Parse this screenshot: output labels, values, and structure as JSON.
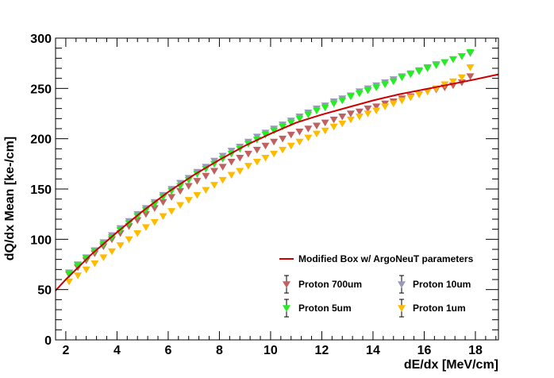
{
  "chart_data": {
    "type": "scatter",
    "title": "",
    "xlabel": "dE/dx [MeV/cm]",
    "ylabel": "dQ/dx Mean [ke-/cm]",
    "xlim": [
      1.6,
      18.9
    ],
    "ylim": [
      0,
      300
    ],
    "x_ticks": [
      2,
      4,
      6,
      8,
      10,
      12,
      14,
      16,
      18
    ],
    "y_ticks": [
      0,
      50,
      100,
      150,
      200,
      250,
      300
    ],
    "grid": false,
    "legend_position": "bottom-right",
    "curve": {
      "name": "Modified Box w/ ArgoNeuT parameters",
      "color": "#cc0000",
      "x": [
        1.6,
        2.0,
        3.0,
        4.0,
        5.0,
        6.0,
        7.0,
        8.0,
        9.0,
        10.0,
        11.0,
        12.0,
        13.0,
        14.0,
        15.0,
        16.0,
        17.0,
        18.0,
        18.9
      ],
      "y": [
        49,
        60,
        85,
        107,
        128,
        147,
        164,
        179,
        193,
        205,
        216,
        224,
        231,
        238,
        244,
        249,
        254,
        259,
        264
      ]
    },
    "series": [
      {
        "name": "Proton 700um",
        "color": "#c06060",
        "x": [
          2.13,
          2.47,
          2.8,
          3.13,
          3.47,
          3.8,
          4.13,
          4.47,
          4.8,
          5.13,
          5.47,
          5.8,
          6.13,
          6.47,
          6.8,
          7.13,
          7.47,
          7.8,
          8.13,
          8.47,
          8.8,
          9.13,
          9.47,
          9.8,
          10.13,
          10.47,
          10.8,
          11.13,
          11.47,
          11.8,
          12.13,
          12.47,
          12.8,
          13.13,
          13.47,
          13.8,
          14.13,
          14.47,
          14.8,
          15.13,
          15.47,
          15.8,
          16.13,
          16.47,
          16.8,
          17.13,
          17.47,
          17.8
        ],
        "y": [
          65,
          72,
          79,
          86,
          93,
          100,
          106,
          113,
          119,
          125,
          131,
          137,
          142,
          148,
          153,
          158,
          163,
          168,
          172,
          177,
          181,
          185,
          189,
          193,
          197,
          200,
          204,
          207,
          210,
          213,
          216,
          219,
          222,
          225,
          227,
          230,
          232,
          235,
          237,
          240,
          242,
          244,
          247,
          249,
          251,
          253,
          256,
          262
        ]
      },
      {
        "name": "Proton 10um",
        "color": "#9999bb",
        "x": [
          2.13,
          2.47,
          2.8,
          3.13,
          3.47,
          3.8,
          4.13,
          4.47,
          4.8,
          5.13,
          5.47,
          5.8,
          6.13,
          6.47,
          6.8,
          7.13,
          7.47,
          7.8,
          8.13,
          8.47,
          8.8,
          9.13,
          9.47,
          9.8,
          10.13,
          10.47,
          10.8,
          11.13,
          11.47,
          11.8,
          12.13,
          12.47,
          12.8,
          13.13,
          13.47,
          13.8,
          14.13,
          14.47,
          14.8,
          15.13,
          15.47,
          15.8,
          16.13,
          16.47,
          16.8,
          17.13,
          17.47,
          17.8
        ],
        "y": [
          67,
          75,
          82,
          89,
          97,
          104,
          111,
          118,
          125,
          131,
          137,
          144,
          150,
          156,
          161,
          167,
          172,
          178,
          183,
          188,
          192,
          197,
          202,
          206,
          210,
          214,
          218,
          222,
          226,
          230,
          233,
          237,
          240,
          243,
          247,
          250,
          253,
          256,
          259,
          262,
          265,
          268,
          271,
          274,
          276,
          279,
          282,
          285
        ]
      },
      {
        "name": "Proton 5um",
        "color": "#22ee22",
        "x": [
          2.13,
          2.47,
          2.8,
          3.13,
          3.47,
          3.8,
          4.13,
          4.47,
          4.8,
          5.13,
          5.47,
          5.8,
          6.13,
          6.47,
          6.8,
          7.13,
          7.47,
          7.8,
          8.13,
          8.47,
          8.8,
          9.13,
          9.47,
          9.8,
          10.13,
          10.47,
          10.8,
          11.13,
          11.47,
          11.8,
          12.13,
          12.47,
          12.8,
          13.13,
          13.47,
          13.8,
          14.13,
          14.47,
          14.8,
          15.13,
          15.47,
          15.8,
          16.13,
          16.47,
          16.8,
          17.13,
          17.47,
          17.8
        ],
        "y": [
          66,
          74,
          81,
          88,
          95,
          102,
          109,
          116,
          123,
          129,
          135,
          142,
          148,
          153,
          159,
          165,
          170,
          175,
          180,
          185,
          190,
          195,
          199,
          204,
          208,
          212,
          216,
          220,
          224,
          228,
          231,
          235,
          238,
          242,
          245,
          248,
          251,
          254,
          257,
          261,
          264,
          267,
          270,
          273,
          276,
          279,
          282,
          286
        ]
      },
      {
        "name": "Proton 1um",
        "color": "#ffbb00",
        "x": [
          2.13,
          2.47,
          2.8,
          3.13,
          3.47,
          3.8,
          4.13,
          4.47,
          4.8,
          5.13,
          5.47,
          5.8,
          6.13,
          6.47,
          6.8,
          7.13,
          7.47,
          7.8,
          8.13,
          8.47,
          8.8,
          9.13,
          9.47,
          9.8,
          10.13,
          10.47,
          10.8,
          11.13,
          11.47,
          11.8,
          12.13,
          12.47,
          12.8,
          13.13,
          13.47,
          13.8,
          14.13,
          14.47,
          14.8,
          15.13,
          15.47,
          15.8,
          16.13,
          16.47,
          16.8,
          17.13,
          17.47,
          17.8
        ],
        "y": [
          58,
          64,
          70,
          76,
          82,
          88,
          94,
          100,
          106,
          112,
          117,
          123,
          128,
          134,
          139,
          144,
          149,
          154,
          159,
          164,
          168,
          173,
          177,
          181,
          185,
          189,
          193,
          197,
          201,
          205,
          208,
          212,
          215,
          219,
          222,
          225,
          228,
          232,
          235,
          238,
          241,
          244,
          247,
          250,
          254,
          257,
          261,
          271
        ]
      }
    ]
  }
}
